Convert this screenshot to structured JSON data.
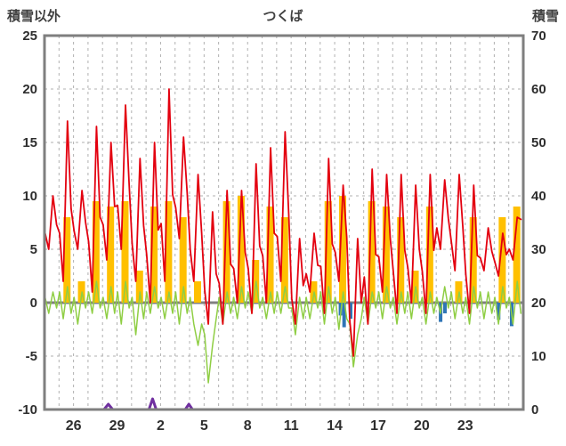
{
  "header": {
    "left_label": "積雪以外",
    "title": "つくば",
    "right_label": "積雪"
  },
  "chart_data": {
    "type": "line",
    "title": "つくば",
    "grid": true,
    "legend": "none",
    "left_axis": {
      "label": "積雪以外",
      "min": -10,
      "max": 25,
      "ticks": [
        25,
        20,
        15,
        10,
        5,
        0,
        -5,
        -10
      ]
    },
    "right_axis": {
      "label": "積雪",
      "min": 0,
      "max": 70,
      "ticks": [
        70,
        60,
        50,
        40,
        30,
        20,
        10,
        0
      ]
    },
    "x_axis": {
      "tick_labels": [
        "26",
        "29",
        "2",
        "5",
        "8",
        "11",
        "14",
        "17",
        "20",
        "23"
      ],
      "tick_days": [
        2,
        5,
        8,
        11,
        14,
        17,
        20,
        23,
        26,
        29
      ],
      "domain_days": [
        0,
        33
      ],
      "gridline_every_days": 1
    },
    "colors": {
      "red": "#e3000f",
      "yellow": "#ffc000",
      "green": "#8fce44",
      "blue": "#2e75b6",
      "purple": "#7030a0",
      "grid": "#b0b0b0",
      "zero_line": "#808080",
      "frame": "#7f7f7f",
      "text": "#2e2e2e",
      "header_text": "#404040"
    },
    "series": {
      "red_line": {
        "axis": "left",
        "samples_per_day": 4,
        "sample_hours": [
          1,
          7,
          14,
          20
        ],
        "values": [
          6.5,
          5,
          10,
          7.3,
          6.5,
          2,
          17,
          8.8,
          6.7,
          5,
          10.5,
          7.5,
          5.7,
          1,
          16.5,
          8,
          7.3,
          4,
          15,
          9,
          9.1,
          5,
          18.5,
          11.1,
          5.5,
          2,
          13.5,
          7.2,
          4.5,
          0,
          15,
          6.8,
          7.4,
          2,
          20,
          10.1,
          8.9,
          6,
          15.5,
          10.3,
          5,
          2,
          12,
          6.5,
          1.2,
          -2,
          8.5,
          2.7,
          1.8,
          -2,
          10.5,
          3.6,
          3.2,
          0,
          10.5,
          4.7,
          3.2,
          -1,
          13,
          5.3,
          4.4,
          0,
          14.5,
          6.5,
          6.2,
          2,
          16,
          8.3,
          0.4,
          -2,
          6,
          1.6,
          2.7,
          1,
          6.5,
          3.5,
          3.4,
          -1,
          13.5,
          5.5,
          4.7,
          2,
          11,
          6.1,
          -1.7,
          -5,
          6,
          0,
          2.4,
          -2,
          12.5,
          4.5,
          4.3,
          1,
          12,
          6,
          2.9,
          -1,
          12,
          4.9,
          3.3,
          0,
          11,
          5,
          2.9,
          -1,
          12,
          4.9,
          7,
          5,
          11.5,
          7.9,
          5.7,
          3,
          12,
          7.1,
          2.6,
          -1,
          11,
          4.4,
          4.2,
          3,
          7,
          4.8,
          3.8,
          2.5,
          6.5,
          4.5,
          5,
          4,
          8,
          7.8
        ]
      },
      "green_line": {
        "axis": "left",
        "samples_per_day": 4,
        "sample_hours": [
          1,
          7,
          14,
          20
        ],
        "values": [
          0.5,
          -1,
          1,
          -0.5,
          1,
          -1.5,
          1.5,
          -1,
          0.5,
          -2,
          1,
          -0.5,
          1,
          -1,
          2,
          -0.5,
          0.5,
          -1.5,
          1.5,
          -1,
          1,
          -2,
          2,
          -0.5,
          0.5,
          -3,
          1,
          -1.5,
          1,
          -1,
          1.5,
          -0.5,
          0.5,
          -1.5,
          1,
          -1,
          1,
          -2,
          1.5,
          -1,
          0.5,
          -2,
          -4,
          -2,
          -3,
          -7.5,
          -4,
          -1.5,
          0.5,
          -2,
          1,
          -1,
          0.5,
          -1.5,
          1.5,
          -0.5,
          1,
          -1,
          2,
          -0.5,
          0.5,
          -1.5,
          1,
          -1,
          1,
          -1,
          1.5,
          -0.5,
          -0.5,
          -3,
          0.5,
          -1.5,
          0.5,
          -1.5,
          1,
          -0.5,
          1,
          -2,
          1.5,
          -1,
          0.5,
          -2.5,
          1,
          -1.5,
          -2,
          -6,
          -3,
          -1.5,
          0.5,
          -2,
          1,
          -0.5,
          1,
          -1.5,
          1.5,
          -0.5,
          0.5,
          -2,
          1,
          -1,
          1,
          -1.5,
          1.5,
          -0.5,
          0.5,
          -2,
          1,
          -1,
          0.5,
          -1,
          1.5,
          -0.5,
          1,
          -1.5,
          1,
          -1,
          0.5,
          -2,
          1.5,
          -0.5,
          1,
          -1.5,
          1,
          -1,
          0.5,
          -2,
          1.5,
          -0.5,
          0.5,
          -2,
          2,
          -1
        ]
      },
      "yellow_bars": {
        "axis": "left",
        "per_day": [
          0,
          8,
          2,
          9.5,
          9,
          9.5,
          3,
          9,
          9.5,
          8,
          2,
          0,
          9.5,
          10,
          4,
          9,
          8,
          0,
          2,
          9.5,
          10,
          0,
          9.5,
          9,
          8,
          3,
          9,
          0,
          2,
          8,
          0,
          8,
          9
        ]
      },
      "blue_bars": {
        "axis": "left",
        "points": [
          [
            20.4,
            -1.2
          ],
          [
            20.65,
            -2.3
          ],
          [
            21.1,
            -1.5
          ],
          [
            27.3,
            -1.8
          ],
          [
            27.6,
            -1.0
          ],
          [
            31.3,
            -1.6
          ],
          [
            32.2,
            -2.2
          ]
        ]
      },
      "purple_line": {
        "axis": "right",
        "points": [
          [
            2.2,
            0
          ],
          [
            4.1,
            0
          ],
          [
            4.4,
            1
          ],
          [
            4.7,
            0
          ],
          [
            7.2,
            0
          ],
          [
            7.45,
            2
          ],
          [
            7.7,
            0
          ],
          [
            9.7,
            0
          ],
          [
            9.95,
            1
          ],
          [
            10.2,
            0
          ],
          [
            10.8,
            0
          ]
        ]
      }
    }
  }
}
